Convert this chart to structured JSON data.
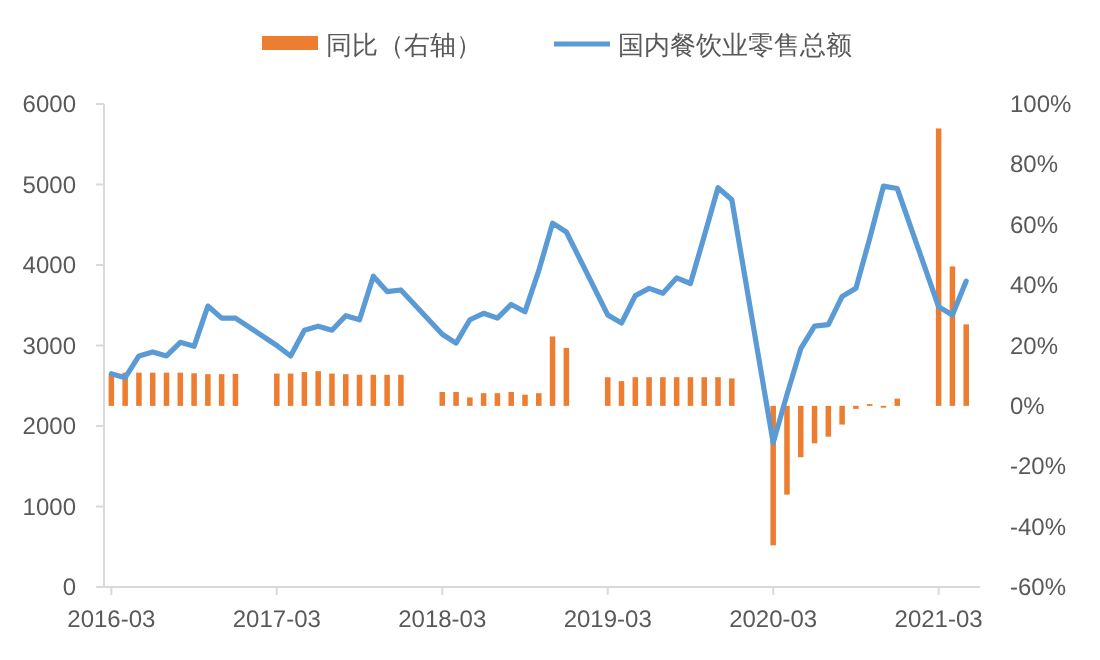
{
  "chart_data": {
    "type": "bar",
    "legend": "top",
    "x": [
      "2016-03",
      "2016-04",
      "2016-05",
      "2016-06",
      "2016-07",
      "2016-08",
      "2016-09",
      "2016-10",
      "2016-11",
      "2016-12",
      "2017-03",
      "2017-04",
      "2017-05",
      "2017-06",
      "2017-07",
      "2017-08",
      "2017-09",
      "2017-10",
      "2017-11",
      "2017-12",
      "2018-03",
      "2018-04",
      "2018-05",
      "2018-06",
      "2018-07",
      "2018-08",
      "2018-09",
      "2018-10",
      "2018-11",
      "2018-12",
      "2019-03",
      "2019-04",
      "2019-05",
      "2019-06",
      "2019-07",
      "2019-08",
      "2019-09",
      "2019-10",
      "2019-11",
      "2019-12",
      "2020-03",
      "2020-04",
      "2020-05",
      "2020-06",
      "2020-07",
      "2020-08",
      "2020-09",
      "2020-10",
      "2020-11",
      "2020-12",
      "2021-03",
      "2021-04",
      "2021-05"
    ],
    "series": [
      {
        "name": "同比（右轴）",
        "axis": "y2",
        "color": "#ed7d31",
        "values": [
          10.4,
          11.0,
          11.0,
          11.0,
          11.0,
          11.0,
          10.8,
          10.5,
          10.5,
          10.6,
          10.7,
          10.7,
          11.2,
          11.5,
          10.7,
          10.5,
          10.3,
          10.3,
          10.3,
          10.3,
          4.6,
          4.6,
          2.8,
          4.2,
          4.2,
          4.6,
          3.7,
          4.2,
          23.0,
          19.2,
          9.5,
          8.2,
          9.5,
          9.5,
          9.5,
          9.5,
          9.5,
          9.5,
          9.5,
          9.1,
          -46.2,
          -29.4,
          -17.0,
          -12.4,
          -10.2,
          -6.2,
          -1.0,
          0.6,
          -0.6,
          2.4,
          91.9,
          46.2,
          27.0
        ]
      },
      {
        "name": "国内餐饮业零售总额",
        "type": "line",
        "color": "#5b9bd5",
        "values": [
          2650,
          2600,
          2870,
          2920,
          2870,
          3040,
          2990,
          3490,
          3340,
          3340,
          3000,
          2870,
          3190,
          3240,
          3190,
          3370,
          3320,
          3860,
          3670,
          3690,
          3140,
          3030,
          3320,
          3400,
          3340,
          3510,
          3420,
          3930,
          4520,
          4410,
          3380,
          3280,
          3620,
          3710,
          3650,
          3840,
          3770,
          4360,
          4960,
          4810,
          1790,
          2390,
          2960,
          3240,
          3260,
          3610,
          3710,
          4330,
          4980,
          4950,
          3480,
          3380,
          3800
        ]
      }
    ],
    "xlim": [
      "2016-02-15",
      "2021-05-31"
    ],
    "xticks": [
      "2016-03",
      "2017-03",
      "2018-03",
      "2019-03",
      "2020-03",
      "2021-03"
    ],
    "ylim": [
      0,
      6000
    ],
    "yticks": [
      0,
      1000,
      2000,
      3000,
      4000,
      5000,
      6000
    ],
    "y2lim": [
      -60,
      100
    ],
    "y2ticks": [
      {
        "value": -60,
        "label": "-60%"
      },
      {
        "value": -40,
        "label": "-40%"
      },
      {
        "value": -20,
        "label": "-20%"
      },
      {
        "value": 0,
        "label": "0%"
      },
      {
        "value": 20,
        "label": "20%"
      },
      {
        "value": 40,
        "label": "40%"
      },
      {
        "value": 60,
        "label": "60%"
      },
      {
        "value": 80,
        "label": "80%"
      },
      {
        "value": 100,
        "label": "100%"
      }
    ]
  }
}
